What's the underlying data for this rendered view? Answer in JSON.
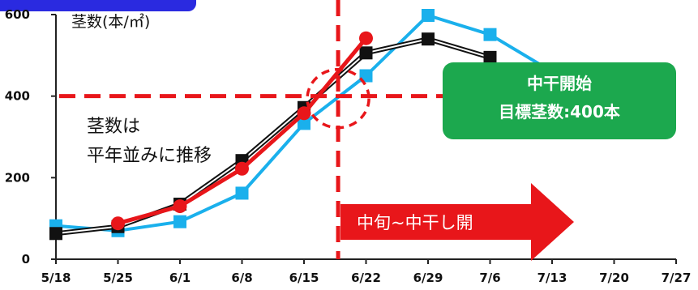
{
  "colors": {
    "corner_badge": "#2a2ae0",
    "threshold": "#e8161a",
    "green_box": "#1ca84e",
    "arrow": "#e8161a"
  },
  "annotations": {
    "unit_label": "茎数(本/㎡)",
    "note_line1": "茎数は",
    "note_line2": "平年並みに推移",
    "box_line1": "中干開始",
    "box_line2": "目標茎数:400本",
    "arrow_label": "中旬~中干し開"
  },
  "chart_data": {
    "type": "line",
    "title": "",
    "xlabel": "",
    "ylabel": "茎数(本/㎡)",
    "categories": [
      "5/18",
      "5/25",
      "6/1",
      "6/8",
      "6/15",
      "6/22",
      "6/29",
      "7/6",
      "7/13",
      "7/20",
      "7/27"
    ],
    "y_ticks": [
      "0",
      "200",
      "400",
      "600"
    ],
    "ylim": [
      0,
      600
    ],
    "grid": false,
    "threshold_y": 400,
    "series": [
      {
        "color": "#1ab0ec",
        "marker": "square",
        "points": [
          [
            0,
            82
          ],
          [
            1,
            70
          ],
          [
            2,
            92
          ],
          [
            3,
            162
          ],
          [
            4,
            333
          ],
          [
            5,
            450
          ],
          [
            6,
            598
          ],
          [
            7,
            551
          ],
          [
            8,
            460
          ]
        ]
      },
      {
        "color": "#111111",
        "marker": "square",
        "points": [
          [
            0,
            63
          ],
          [
            1,
            80
          ],
          [
            2,
            135
          ],
          [
            3,
            242
          ],
          [
            4,
            372
          ],
          [
            5,
            506
          ],
          [
            6,
            540
          ],
          [
            7,
            495
          ]
        ]
      },
      {
        "color": "#e8161a",
        "marker": "circle",
        "points": [
          [
            1,
            88
          ],
          [
            2,
            130
          ],
          [
            3,
            222
          ],
          [
            4,
            358
          ],
          [
            5,
            542
          ]
        ]
      }
    ]
  }
}
